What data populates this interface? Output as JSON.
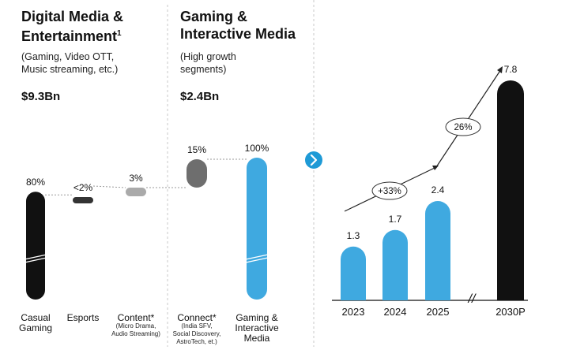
{
  "left": {
    "title_line1": "Digital Media &",
    "title_line2": "Entertainment",
    "title_footnote": "1",
    "note_line1": "(Gaming, Video OTT,",
    "note_line2": "Music streaming, etc.)",
    "total": "$9.3Bn"
  },
  "middle": {
    "title_line1": "Gaming &",
    "title_line2": "Interactive Media",
    "note_line1": "(High growth",
    "note_line2": "segments)",
    "total": "$2.4Bn"
  },
  "colors": {
    "black": "#111111",
    "dark_gray": "#333333",
    "light_gray": "#aaaaaa",
    "mid_gray": "#6e6e6e",
    "blue": "#3fa9e0",
    "blue_dark": "#2f9fd8",
    "arrow_circle": "#1e9ad6"
  },
  "chart_data": [
    {
      "type": "bar",
      "categories": [
        "Casual Gaming",
        "Esports",
        "Content*",
        "Connect*",
        "Gaming & Interactive Media"
      ],
      "category_label_lines": [
        [
          "Casual",
          "Gaming"
        ],
        [
          "Esports"
        ],
        [
          "Content*"
        ],
        [
          "Connect*"
        ],
        [
          "Gaming &",
          "Interactive",
          "Media"
        ]
      ],
      "category_sublabels": [
        [],
        [],
        [
          "(Micro Drama,",
          "Audio Streaming)"
        ],
        [
          "(India SFV,",
          "Social Discovery,",
          "AstroTech, et.)"
        ],
        []
      ],
      "values": [
        80,
        2,
        3,
        15,
        100
      ],
      "value_labels": [
        "80%",
        "<2%",
        "3%",
        "15%",
        "100%"
      ],
      "bar_colors": [
        "#111111",
        "#333333",
        "#aaaaaa",
        "#6e6e6e",
        "#3fa9e0"
      ],
      "ylim": [
        0,
        100
      ],
      "title": "",
      "xlabel": "",
      "ylabel": ""
    },
    {
      "type": "bar",
      "categories": [
        "2023",
        "2024",
        "2025",
        "2030P"
      ],
      "values": [
        1.3,
        1.7,
        2.4,
        7.8
      ],
      "value_labels": [
        "1.3",
        "1.7",
        "2.4",
        "7.8"
      ],
      "bar_colors": [
        "#3fa9e0",
        "#3fa9e0",
        "#3fa9e0",
        "#111111"
      ],
      "growth_labels": [
        "+33%",
        "26%"
      ],
      "axis_break": "//",
      "title": "",
      "xlabel": "",
      "ylabel": ""
    }
  ]
}
